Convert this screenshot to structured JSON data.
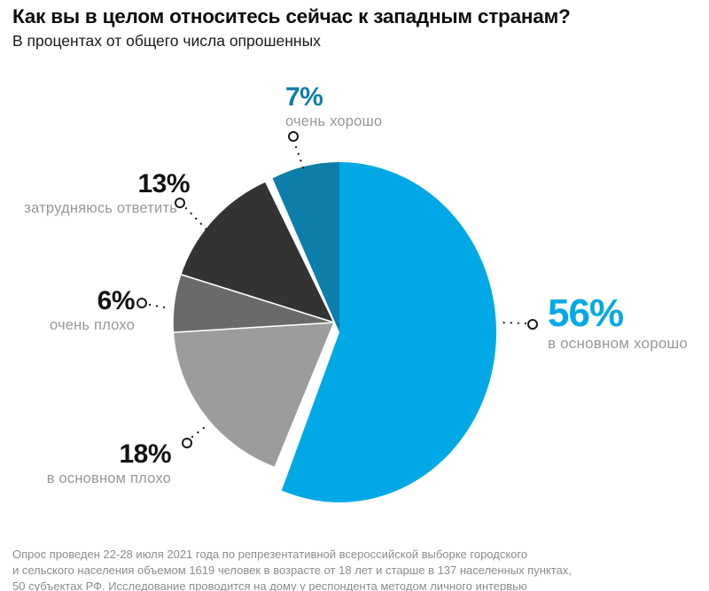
{
  "header": {
    "title": "Как вы в целом относитесь сейчас к западным странам?",
    "subtitle": "В процентах от общего числа опрошенных"
  },
  "chart_data": {
    "type": "pie",
    "unit": "percent",
    "direction": "clockwise",
    "start_angle_deg": 0,
    "title": "Как вы в целом относитесь сейчас к западным странам?",
    "subtitle": "В процентах от общего числа опрошенных",
    "slices": [
      {
        "label": "в основном хорошо",
        "value": 56,
        "pct": "56%",
        "color": "#00A9E6",
        "group": "blue",
        "exploded": true
      },
      {
        "label": "в основном плохо",
        "value": 18,
        "pct": "18%",
        "color": "#9C9C9C",
        "group": "gray",
        "exploded": false
      },
      {
        "label": "очень плохо",
        "value": 6,
        "pct": "6%",
        "color": "#6A6A6A",
        "group": "gray",
        "exploded": false
      },
      {
        "label": "затрудняюсь ответить",
        "value": 13,
        "pct": "13%",
        "color": "#333333",
        "group": "gray",
        "exploded": false
      },
      {
        "label": "очень хорошо",
        "value": 7,
        "pct": "7%",
        "color": "#0C7EA9",
        "group": "blue",
        "exploded": true
      }
    ],
    "accent_color": "#00A9E6",
    "accent_dark_color": "#0C7EA9",
    "number_color": "#111111",
    "category_label_color": "#989898",
    "legend_position": "around-pie"
  },
  "footnote": {
    "lines": [
      "Опрос проведен 22-28 июля 2021 года по репрезентативной всероссийской выборке городского",
      "и сельского населения объемом 1619 человек в возрасте от 18 лет и старше в 137 населенных пунктах,",
      "50 субъектах РФ. Исследование проводится на дому у респондента методом личного интервью"
    ]
  }
}
